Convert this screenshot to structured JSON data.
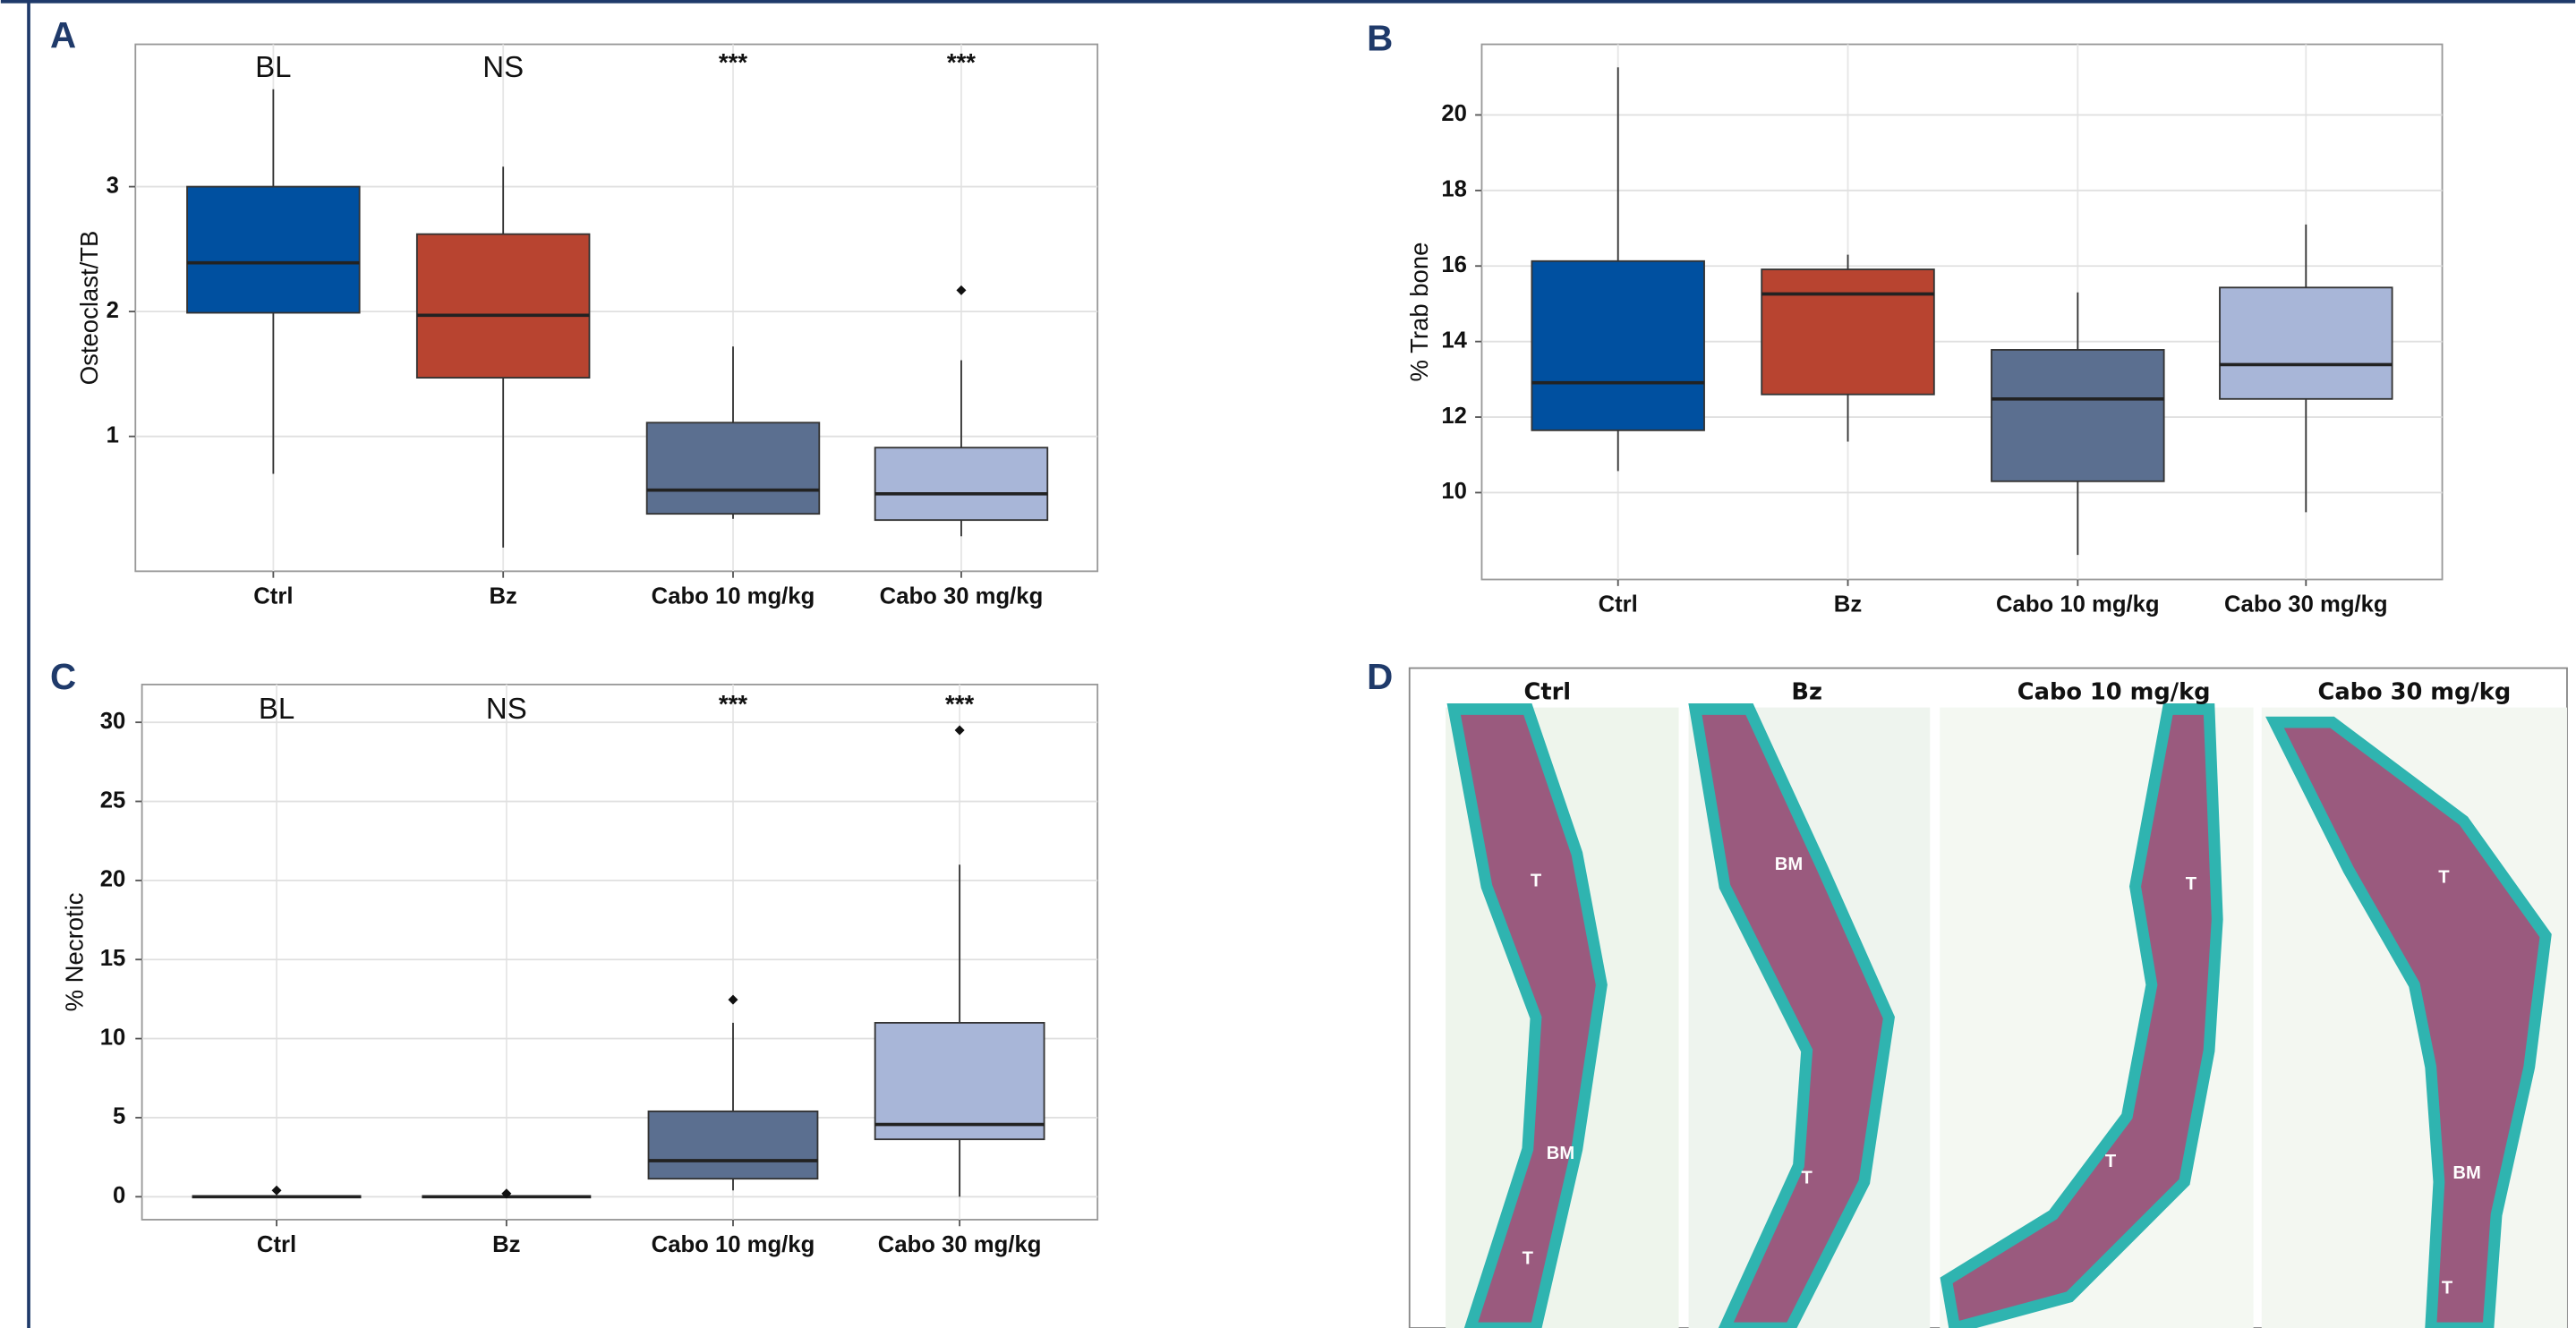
{
  "chart_data": [
    {
      "type": "box",
      "panel": "A",
      "y_label": "Osteoclast/TB",
      "categories": [
        "Ctrl",
        "Bz",
        "Cabo 10 mg/kg",
        "Cabo 30 mg/kg"
      ],
      "colors": [
        "#0050a0",
        "#b84430",
        "#5b6f90",
        "#a8b6d8"
      ],
      "annotations": [
        "BL",
        "NS",
        "***",
        "***"
      ],
      "boxes": [
        {
          "min": 0.7,
          "q1": 1.99,
          "median": 2.39,
          "q3": 3.0,
          "max": 3.78,
          "outliers": []
        },
        {
          "min": 0.11,
          "q1": 1.47,
          "median": 1.97,
          "q3": 2.62,
          "max": 3.16,
          "outliers": []
        },
        {
          "min": 0.34,
          "q1": 0.38,
          "median": 0.57,
          "q3": 1.11,
          "max": 1.72,
          "outliers": []
        },
        {
          "min": 0.2,
          "q1": 0.33,
          "median": 0.54,
          "q3": 0.91,
          "max": 1.61,
          "outliers": [
            2.17
          ]
        }
      ],
      "ylim": [
        -0.08,
        4.14
      ],
      "yticks": [
        1,
        2,
        3
      ],
      "grid": true
    },
    {
      "type": "box",
      "panel": "B",
      "y_label": "% Trab bone",
      "categories": [
        "Ctrl",
        "Bz",
        "Cabo 10 mg/kg",
        "Cabo 30 mg/kg"
      ],
      "colors": [
        "#0050a0",
        "#b84430",
        "#5b6f90",
        "#a8b6d8"
      ],
      "boxes": [
        {
          "min": 10.57,
          "q1": 11.65,
          "median": 12.91,
          "q3": 16.13,
          "max": 21.26,
          "outliers": []
        },
        {
          "min": 11.35,
          "q1": 12.6,
          "median": 15.26,
          "q3": 15.91,
          "max": 16.3,
          "outliers": []
        },
        {
          "min": 8.35,
          "q1": 10.3,
          "median": 12.48,
          "q3": 13.78,
          "max": 15.3,
          "outliers": []
        },
        {
          "min": 9.48,
          "q1": 12.48,
          "median": 13.39,
          "q3": 15.43,
          "max": 17.1,
          "outliers": []
        }
      ],
      "ylim": [
        7.7,
        21.87
      ],
      "yticks": [
        10,
        12,
        14,
        16,
        18,
        20
      ],
      "grid": true
    },
    {
      "type": "box",
      "panel": "C",
      "y_label": "% Necrotic",
      "categories": [
        "Ctrl",
        "Bz",
        "Cabo 10 mg/kg",
        "Cabo 30 mg/kg"
      ],
      "colors": [
        "#0050a0",
        "#b84430",
        "#5b6f90",
        "#a8b6d8"
      ],
      "annotations": [
        "BL",
        "NS",
        "***",
        "***"
      ],
      "boxes": [
        {
          "min": 0,
          "q1": 0,
          "median": 0,
          "q3": 0,
          "max": 0,
          "outliers": [
            0.4
          ]
        },
        {
          "min": 0,
          "q1": 0,
          "median": 0,
          "q3": 0,
          "max": 0,
          "outliers": [
            0.2
          ]
        },
        {
          "min": 0.4,
          "q1": 1.14,
          "median": 2.28,
          "q3": 5.4,
          "max": 11.0,
          "outliers": [
            12.46
          ]
        },
        {
          "min": 0,
          "q1": 3.63,
          "median": 4.57,
          "q3": 11.0,
          "max": 21.0,
          "outliers": [
            29.5
          ]
        }
      ],
      "ylim": [
        -1.45,
        32.39
      ],
      "yticks": [
        0,
        5,
        10,
        15,
        20,
        25,
        30
      ],
      "grid": true
    }
  ],
  "figure_panel": {
    "panel": "D",
    "columns": [
      {
        "title": "Ctrl",
        "labels": [
          "T",
          "BM",
          "T"
        ]
      },
      {
        "title": "Bz",
        "labels": [
          "BM",
          "T"
        ]
      },
      {
        "title": "Cabo 10 mg/kg",
        "labels": [
          "T",
          "T"
        ]
      },
      {
        "title": "Cabo 30 mg/kg",
        "labels": [
          "T",
          "BM",
          "T"
        ]
      }
    ]
  }
}
